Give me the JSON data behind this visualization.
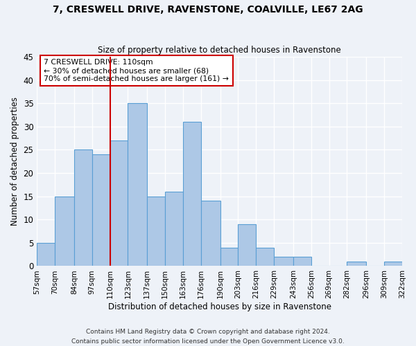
{
  "title": "7, CRESWELL DRIVE, RAVENSTONE, COALVILLE, LE67 2AG",
  "subtitle": "Size of property relative to detached houses in Ravenstone",
  "xlabel": "Distribution of detached houses by size in Ravenstone",
  "ylabel": "Number of detached properties",
  "bin_edges": [
    57,
    70,
    84,
    97,
    110,
    123,
    137,
    150,
    163,
    176,
    190,
    203,
    216,
    229,
    243,
    256,
    269,
    282,
    296,
    309,
    322
  ],
  "bin_labels": [
    "57sqm",
    "70sqm",
    "84sqm",
    "97sqm",
    "110sqm",
    "123sqm",
    "137sqm",
    "150sqm",
    "163sqm",
    "176sqm",
    "190sqm",
    "203sqm",
    "216sqm",
    "229sqm",
    "243sqm",
    "256sqm",
    "269sqm",
    "282sqm",
    "296sqm",
    "309sqm",
    "322sqm"
  ],
  "counts": [
    5,
    15,
    25,
    24,
    27,
    35,
    15,
    16,
    31,
    14,
    4,
    9,
    4,
    2,
    2,
    0,
    0,
    1,
    0,
    1
  ],
  "bar_color": "#adc8e6",
  "bar_edge_color": "#5a9fd4",
  "vline_x": 110,
  "vline_color": "#cc0000",
  "annotation_line1": "7 CRESWELL DRIVE: 110sqm",
  "annotation_line2": "← 30% of detached houses are smaller (68)",
  "annotation_line3": "70% of semi-detached houses are larger (161) →",
  "annotation_box_color": "#ffffff",
  "annotation_box_edge_color": "#cc0000",
  "ylim": [
    0,
    45
  ],
  "yticks": [
    0,
    5,
    10,
    15,
    20,
    25,
    30,
    35,
    40,
    45
  ],
  "background_color": "#eef2f8",
  "grid_color": "#ffffff",
  "footer_line1": "Contains HM Land Registry data © Crown copyright and database right 2024.",
  "footer_line2": "Contains public sector information licensed under the Open Government Licence v3.0."
}
